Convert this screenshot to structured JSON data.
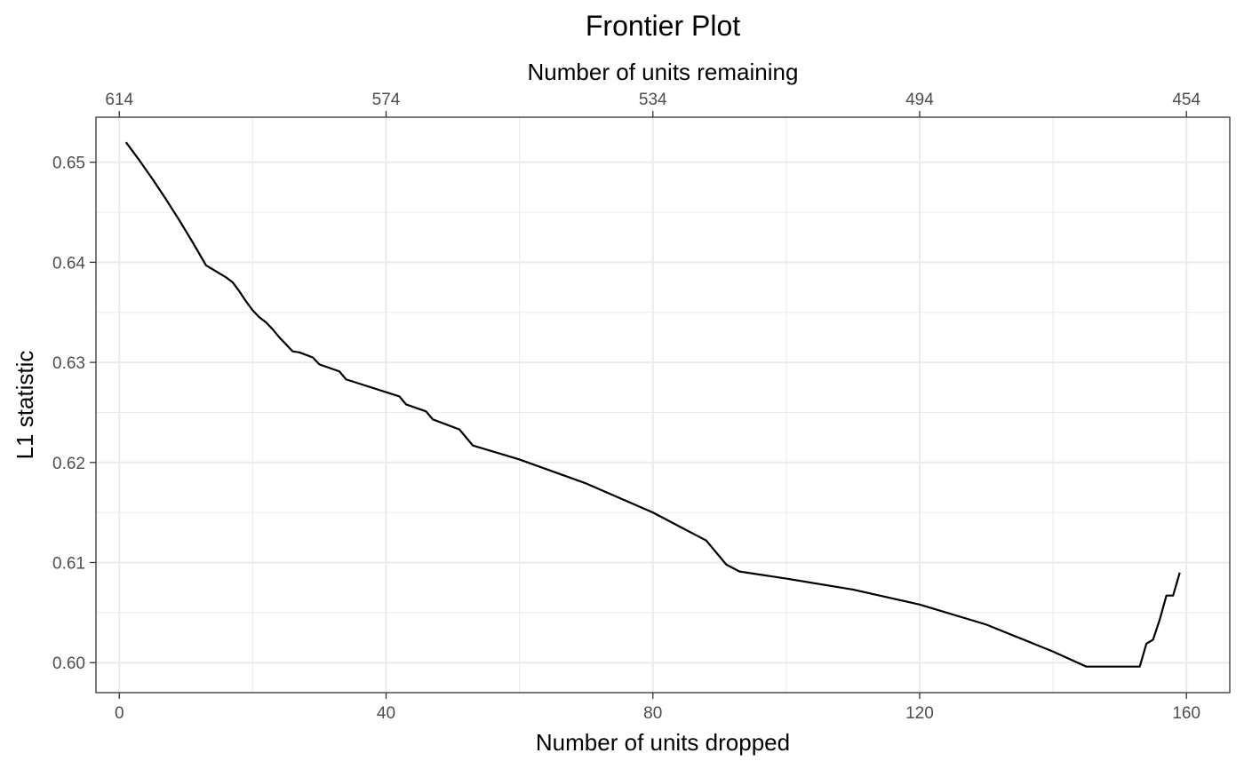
{
  "chart_data": {
    "type": "line",
    "title": "Frontier Plot",
    "xlabel": "Number of units dropped",
    "ylabel": "L1 statistic",
    "x2label": "Number of units remaining",
    "xlim": [
      -3.5,
      166.5
    ],
    "ylim": [
      0.597,
      0.6545
    ],
    "x_ticks": [
      0,
      40,
      80,
      120,
      160
    ],
    "x_tick_labels": [
      "0",
      "40",
      "80",
      "120",
      "160"
    ],
    "x2_ticks": [
      0,
      40,
      80,
      120,
      160
    ],
    "x2_tick_labels": [
      "614",
      "574",
      "534",
      "494",
      "454"
    ],
    "y_ticks": [
      0.6,
      0.61,
      0.62,
      0.63,
      0.64,
      0.65
    ],
    "y_tick_labels": [
      "0.60",
      "0.61",
      "0.62",
      "0.63",
      "0.64",
      "0.65"
    ],
    "x_minor_gridlines": [
      20,
      60,
      100,
      140
    ],
    "y_minor_gridlines": [
      0.605,
      0.615,
      0.625,
      0.635,
      0.645
    ],
    "grid": true,
    "panel_border": true,
    "colors": {
      "line": "#000000",
      "grid": "#ebebeb",
      "border": "#333333"
    },
    "series": [
      {
        "x": [
          1,
          3,
          5,
          7,
          9,
          11,
          13,
          16,
          17,
          18,
          19,
          20,
          21,
          22,
          23,
          24,
          25,
          26,
          27,
          29,
          30,
          33,
          34,
          42,
          43,
          46,
          47,
          51,
          53,
          60,
          70,
          80,
          88,
          91,
          93,
          100,
          110,
          120,
          130,
          140,
          145,
          146,
          153,
          154,
          155,
          156,
          157,
          158,
          159
        ],
        "y": [
          0.652,
          0.6502,
          0.6483,
          0.6463,
          0.6442,
          0.642,
          0.6397,
          0.6385,
          0.638,
          0.6371,
          0.6361,
          0.6352,
          0.6345,
          0.634,
          0.6333,
          0.6325,
          0.6318,
          0.6311,
          0.631,
          0.6305,
          0.6298,
          0.6291,
          0.6283,
          0.6266,
          0.6258,
          0.6251,
          0.6243,
          0.6233,
          0.6217,
          0.6203,
          0.6179,
          0.615,
          0.6122,
          0.6098,
          0.6091,
          0.6084,
          0.6073,
          0.6058,
          0.6038,
          0.6011,
          0.5996,
          0.5996,
          0.5996,
          0.6019,
          0.6023,
          0.6043,
          0.6067,
          0.6067,
          0.609
        ]
      }
    ]
  }
}
